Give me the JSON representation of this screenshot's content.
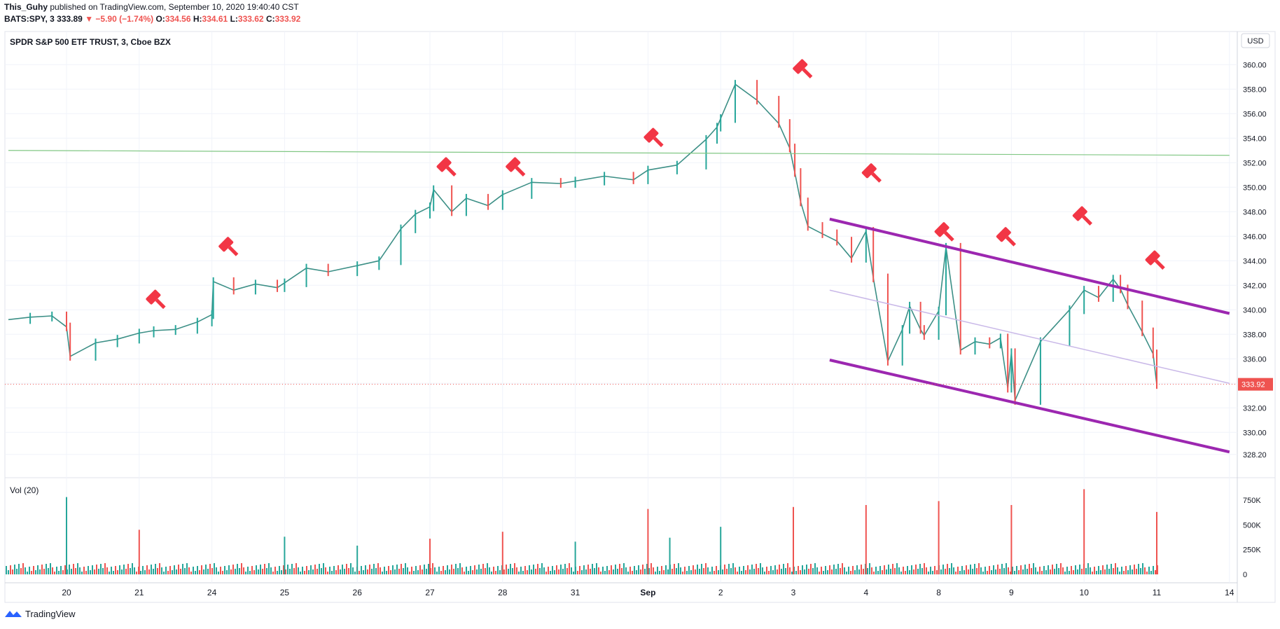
{
  "header": {
    "author": "This_Guhy",
    "published_text": "published on TradingView.com, September 10, 2020 19:40:40 CST",
    "symbol_line": "BATS:SPY, 3",
    "last": "333.89",
    "change": "▼ −5.90 (−1.74%)",
    "o_label": "O:",
    "o_value": "334.56",
    "h_label": "H:",
    "h_value": "334.61",
    "l_label": "L:",
    "l_value": "333.62",
    "c_label": "C:",
    "c_value": "333.92"
  },
  "brand": {
    "name": "TradingView"
  },
  "colors": {
    "up": "#26a69a",
    "down": "#ef5350",
    "channel": "#9c27b0",
    "midline": "#c9b8e8",
    "support": "#81c784",
    "marker": "#f23645",
    "volume_ma": "#ff9800"
  },
  "chart_data": [
    {
      "type": "line",
      "title": "SPDR S&P 500 ETF TRUST, 3, Cboe BZX",
      "currency": "USD",
      "x_label_values": [
        "20",
        "21",
        "24",
        "25",
        "26",
        "27",
        "28",
        "31",
        "Sep",
        "2",
        "3",
        "4",
        "8",
        "9",
        "10",
        "11",
        "14"
      ],
      "y_tick_values": [
        328.2,
        330.0,
        332.0,
        334.0,
        336.0,
        338.0,
        340.0,
        342.0,
        344.0,
        346.0,
        348.0,
        350.0,
        352.0,
        354.0,
        356.0,
        358.0,
        360.0
      ],
      "y_tick_labels": [
        "328.20",
        "330.00",
        "332.00",
        "334.00",
        "336.00",
        "338.00",
        "340.00",
        "342.00",
        "344.00",
        "346.00",
        "348.00",
        "350.00",
        "352.00",
        "354.00",
        "356.00",
        "358.00",
        "360.00"
      ],
      "ylim": [
        326.3,
        362.7
      ],
      "last_price": 333.92,
      "last_price_label": "333.92",
      "series": [
        {
          "x": [
            -0.8,
            -0.5,
            -0.2,
            0,
            0.05,
            0.4,
            0.7,
            1,
            1.2,
            1.5,
            1.8,
            2,
            2.02,
            2.3,
            2.6,
            2.9,
            3,
            3.3,
            3.6,
            4,
            4.3,
            4.6,
            4.8,
            5,
            5.05,
            5.3,
            5.5,
            5.8,
            6,
            6.4,
            6.8,
            7,
            7.4,
            7.8,
            8,
            8.4,
            8.8,
            8.95,
            9,
            9.2,
            9.5,
            9.8,
            9.95,
            10.02,
            10.1,
            10.2,
            10.4,
            10.6,
            10.8,
            11,
            11.1,
            11.3,
            11.5,
            11.6,
            11.75,
            11.8,
            12,
            12.1,
            12.3,
            12.5,
            12.7,
            12.85,
            12.95,
            13,
            13.05,
            13.4,
            13.8,
            14,
            14.2,
            14.4,
            14.5,
            14.6,
            14.8,
            14.95,
            15
          ],
          "y": [
            339.2,
            339.4,
            339.5,
            338.6,
            336.2,
            337.3,
            337.6,
            338.1,
            338.3,
            338.4,
            339.0,
            339.6,
            342.3,
            341.6,
            342.1,
            341.8,
            342.2,
            343.4,
            343.1,
            343.6,
            344.0,
            346.6,
            347.8,
            348.4,
            349.8,
            348.0,
            349.1,
            348.5,
            349.4,
            350.4,
            350.3,
            350.5,
            350.9,
            350.6,
            351.4,
            351.8,
            353.9,
            354.9,
            355.6,
            358.4,
            357.1,
            355.2,
            353.2,
            351.2,
            348.8,
            346.8,
            346.2,
            345.6,
            344.2,
            346.4,
            342.6,
            335.8,
            338.4,
            340.3,
            338.4,
            337.9,
            339.9,
            345.1,
            336.7,
            337.4,
            337.2,
            337.7,
            333.6,
            336.5,
            332.6,
            337.4,
            340.0,
            341.6,
            341.0,
            342.5,
            341.7,
            340.4,
            338.2,
            336.4,
            333.9
          ]
        }
      ],
      "volume": {
        "title": "Vol (20)",
        "y_tick_values": [
          0,
          250000,
          500000,
          750000
        ],
        "y_tick_labels": [
          "0",
          "250K",
          "500K",
          "750K"
        ],
        "ylim": [
          0,
          820000
        ],
        "spikes": [
          {
            "x": 0.0,
            "value": 780000,
            "up": true
          },
          {
            "x": 1.0,
            "value": 450000,
            "up": false
          },
          {
            "x": 3.0,
            "value": 380000,
            "up": true
          },
          {
            "x": 4.0,
            "value": 290000,
            "up": true
          },
          {
            "x": 5.0,
            "value": 360000,
            "up": false
          },
          {
            "x": 6.0,
            "value": 430000,
            "up": false
          },
          {
            "x": 7.0,
            "value": 330000,
            "up": true
          },
          {
            "x": 8.0,
            "value": 660000,
            "up": false
          },
          {
            "x": 8.3,
            "value": 370000,
            "up": true
          },
          {
            "x": 9.0,
            "value": 480000,
            "up": true
          },
          {
            "x": 10.0,
            "value": 680000,
            "up": false
          },
          {
            "x": 11.0,
            "value": 700000,
            "up": false
          },
          {
            "x": 12.0,
            "value": 740000,
            "up": false
          },
          {
            "x": 13.0,
            "value": 700000,
            "up": false
          },
          {
            "x": 14.0,
            "value": 860000,
            "up": false
          },
          {
            "x": 15.0,
            "value": 630000,
            "up": false
          }
        ]
      },
      "annotations": {
        "support_line": {
          "x": [
            -0.8,
            16.0
          ],
          "y": [
            353.0,
            352.6
          ]
        },
        "channel_upper": {
          "x": [
            10.5,
            16.0
          ],
          "y": [
            347.4,
            339.7
          ]
        },
        "channel_middle": {
          "x": [
            10.5,
            16.0
          ],
          "y": [
            341.6,
            334.0
          ]
        },
        "channel_lower": {
          "x": [
            10.5,
            16.0
          ],
          "y": [
            335.9,
            328.4
          ]
        },
        "gavel_markers": [
          {
            "x": 1.2,
            "y": 341.0
          },
          {
            "x": 2.2,
            "y": 345.3
          },
          {
            "x": 5.2,
            "y": 351.8
          },
          {
            "x": 6.15,
            "y": 351.8
          },
          {
            "x": 8.05,
            "y": 354.2
          },
          {
            "x": 10.1,
            "y": 359.8
          },
          {
            "x": 11.05,
            "y": 351.3
          },
          {
            "x": 12.05,
            "y": 346.5
          },
          {
            "x": 12.9,
            "y": 346.1
          },
          {
            "x": 13.95,
            "y": 347.8
          },
          {
            "x": 14.95,
            "y": 344.2
          }
        ]
      }
    }
  ]
}
